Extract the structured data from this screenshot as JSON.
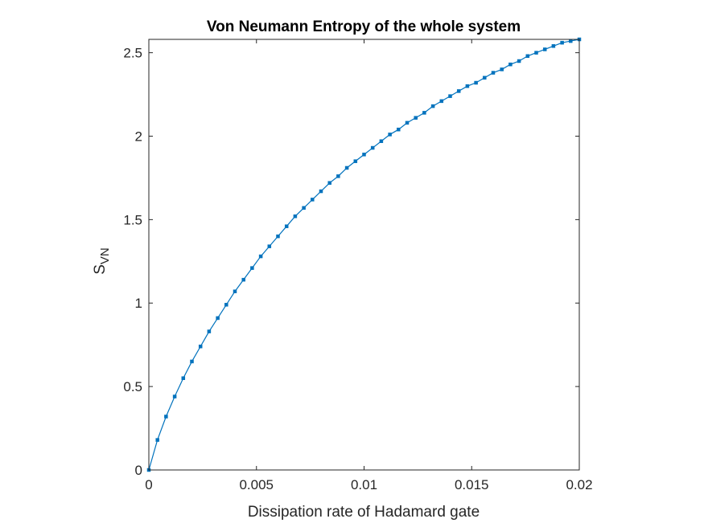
{
  "chart_data": {
    "type": "line",
    "title": "Von Neumann Entropy of the whole system",
    "xlabel": "Dissipation rate of Hadamard gate",
    "ylabel_main": "S",
    "ylabel_sub": "VN",
    "xlim": [
      0,
      0.02
    ],
    "ylim": [
      0,
      2.58
    ],
    "xticks": [
      0,
      0.005,
      0.01,
      0.015,
      0.02
    ],
    "xtick_labels": [
      "0",
      "0.005",
      "0.01",
      "0.015",
      "0.02"
    ],
    "yticks": [
      0,
      0.5,
      1,
      1.5,
      2,
      2.5
    ],
    "ytick_labels": [
      "0",
      "0.5",
      "1",
      "1.5",
      "2",
      "2.5"
    ],
    "grid": false,
    "box": true,
    "series": [
      {
        "color": "#0072BD",
        "marker": "square",
        "x": [
          0,
          0.0004,
          0.0008,
          0.0012,
          0.0016,
          0.002,
          0.0024,
          0.0028,
          0.0032,
          0.0036,
          0.004,
          0.0044,
          0.0048,
          0.0052,
          0.0056,
          0.006,
          0.0064,
          0.0068,
          0.0072,
          0.0076,
          0.008,
          0.0084,
          0.0088,
          0.0092,
          0.0096,
          0.01,
          0.0104,
          0.0108,
          0.0112,
          0.0116,
          0.012,
          0.0124,
          0.0128,
          0.0132,
          0.0136,
          0.014,
          0.0144,
          0.0148,
          0.0152,
          0.0156,
          0.016,
          0.0164,
          0.0168,
          0.0172,
          0.0176,
          0.018,
          0.0184,
          0.0188,
          0.0192,
          0.0196,
          0.02
        ],
        "y": [
          0,
          0.18,
          0.32,
          0.44,
          0.55,
          0.65,
          0.74,
          0.83,
          0.91,
          0.99,
          1.07,
          1.14,
          1.21,
          1.28,
          1.34,
          1.4,
          1.46,
          1.52,
          1.57,
          1.62,
          1.67,
          1.72,
          1.76,
          1.81,
          1.85,
          1.89,
          1.93,
          1.97,
          2.01,
          2.04,
          2.08,
          2.11,
          2.14,
          2.18,
          2.21,
          2.24,
          2.27,
          2.3,
          2.32,
          2.35,
          2.38,
          2.4,
          2.43,
          2.45,
          2.48,
          2.5,
          2.52,
          2.54,
          2.56,
          2.57,
          2.58
        ]
      }
    ]
  }
}
